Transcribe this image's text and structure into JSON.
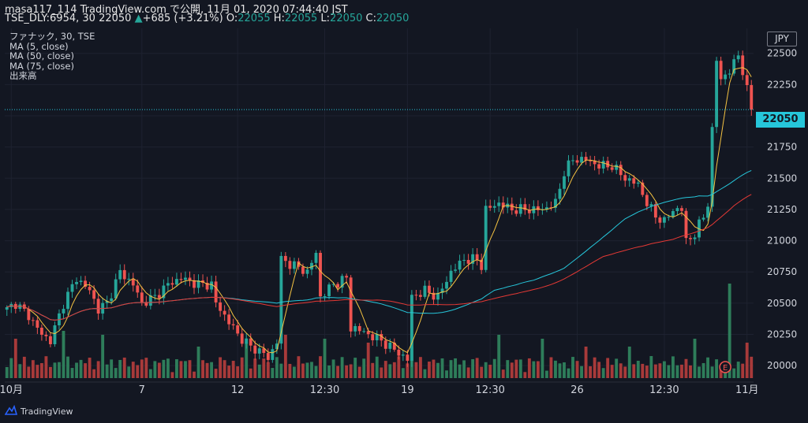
{
  "header": {
    "line1": "masa117_114 TradingView.com で公開, 11月 01, 2020 07:44:40 JST",
    "symbol": "TSE_DLY:6954, 30",
    "price": "22050",
    "change_arrow": "▲",
    "change": "+685 (+3.21%)",
    "o_label": "O:",
    "o_value": "22055",
    "h_label": "H:",
    "h_value": "22055",
    "l_label": "L:",
    "l_value": "22050",
    "c_label": "C:",
    "c_value": "22050"
  },
  "legend": [
    "ファナック, 30, TSE",
    "MA (5, close)",
    "MA (50, close)",
    "MA (75, close)",
    "出来高"
  ],
  "currency": "JPY",
  "last_price_badge": "22050",
  "brand": "TradingView",
  "event_marker": "E",
  "colors": {
    "up": "#26a69a",
    "down": "#ef5350",
    "vol_up": "#2e7d5a",
    "vol_down": "#a83a3a",
    "ma5": "#f5c342",
    "ma50": "#26c6da",
    "ma75": "#e53935",
    "background": "#131722",
    "grid": "#1e2230",
    "last_price_line": "#26c6da"
  },
  "chart_data": {
    "type": "candlestick",
    "y_axis": {
      "range": [
        19900,
        22700
      ],
      "ticks": [
        20000,
        20250,
        20500,
        20750,
        21000,
        21250,
        21500,
        21750,
        22000,
        22250,
        22500
      ]
    },
    "x_axis": {
      "ticks": [
        {
          "label": "10月",
          "bar": 1
        },
        {
          "label": "7",
          "bar": 31
        },
        {
          "label": "12",
          "bar": 53
        },
        {
          "label": "12:30",
          "bar": 73
        },
        {
          "label": "19",
          "bar": 92
        },
        {
          "label": "12:30",
          "bar": 111
        },
        {
          "label": "26",
          "bar": 131
        },
        {
          "label": "12:30",
          "bar": 151
        },
        {
          "label": "11月",
          "bar": 170
        }
      ]
    },
    "close_anchors": [
      [
        0,
        20450
      ],
      [
        2,
        20500
      ],
      [
        5,
        20400
      ],
      [
        8,
        20250
      ],
      [
        10,
        20200
      ],
      [
        13,
        20500
      ],
      [
        16,
        20700
      ],
      [
        19,
        20600
      ],
      [
        21,
        20450
      ],
      [
        23,
        20500
      ],
      [
        26,
        20750
      ],
      [
        29,
        20650
      ],
      [
        31,
        20500
      ],
      [
        34,
        20550
      ],
      [
        37,
        20650
      ],
      [
        40,
        20700
      ],
      [
        44,
        20650
      ],
      [
        47,
        20650
      ],
      [
        48,
        20500
      ],
      [
        50,
        20400
      ],
      [
        53,
        20250
      ],
      [
        56,
        20150
      ],
      [
        59,
        20100
      ],
      [
        60,
        20050
      ],
      [
        62,
        20200
      ],
      [
        63,
        20850
      ],
      [
        66,
        20800
      ],
      [
        69,
        20750
      ],
      [
        71,
        20900
      ],
      [
        72,
        20550
      ],
      [
        75,
        20650
      ],
      [
        78,
        20700
      ],
      [
        79,
        20300
      ],
      [
        80,
        20300
      ],
      [
        83,
        20250
      ],
      [
        86,
        20200
      ],
      [
        88,
        20150
      ],
      [
        90,
        20100
      ],
      [
        92,
        20050
      ],
      [
        93,
        20550
      ],
      [
        96,
        20600
      ],
      [
        99,
        20550
      ],
      [
        102,
        20750
      ],
      [
        105,
        20850
      ],
      [
        108,
        20850
      ],
      [
        109,
        20800
      ],
      [
        110,
        21250
      ],
      [
        113,
        21300
      ],
      [
        116,
        21250
      ],
      [
        119,
        21250
      ],
      [
        123,
        21250
      ],
      [
        126,
        21300
      ],
      [
        128,
        21550
      ],
      [
        130,
        21650
      ],
      [
        133,
        21650
      ],
      [
        136,
        21600
      ],
      [
        139,
        21600
      ],
      [
        142,
        21500
      ],
      [
        145,
        21450
      ],
      [
        147,
        21300
      ],
      [
        149,
        21200
      ],
      [
        151,
        21150
      ],
      [
        153,
        21250
      ],
      [
        155,
        21250
      ],
      [
        156,
        21000
      ],
      [
        158,
        21050
      ],
      [
        160,
        21200
      ],
      [
        161,
        21300
      ],
      [
        163,
        22450
      ],
      [
        164,
        22300
      ],
      [
        166,
        22350
      ],
      [
        168,
        22500
      ],
      [
        170,
        22200
      ],
      [
        171,
        22050
      ]
    ],
    "volume_bars": 172,
    "volume_spikes": [
      [
        2,
        50
      ],
      [
        13,
        60
      ],
      [
        22,
        55
      ],
      [
        44,
        40
      ],
      [
        55,
        45
      ],
      [
        64,
        55
      ],
      [
        73,
        50
      ],
      [
        83,
        45
      ],
      [
        93,
        40
      ],
      [
        113,
        55
      ],
      [
        123,
        50
      ],
      [
        133,
        40
      ],
      [
        143,
        40
      ],
      [
        158,
        50
      ],
      [
        166,
        120
      ],
      [
        170,
        45
      ]
    ]
  }
}
